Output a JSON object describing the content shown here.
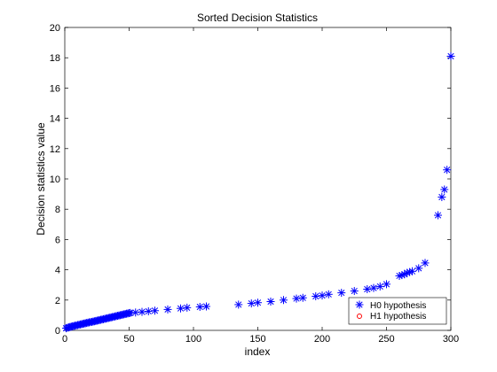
{
  "chart_data": {
    "type": "scatter",
    "title": "Sorted Decision Statistics",
    "xlabel": "index",
    "ylabel": "Decision statistics value",
    "xlim": [
      0,
      300
    ],
    "ylim": [
      0,
      20
    ],
    "xticks": [
      "0",
      "50",
      "100",
      "150",
      "200",
      "250",
      "300"
    ],
    "yticks": [
      "0",
      "2",
      "4",
      "6",
      "8",
      "10",
      "12",
      "14",
      "16",
      "18",
      "20"
    ],
    "grid": false,
    "legend_position": "bottom-right",
    "colors": {
      "h0": "#0000ff",
      "h1": "#ff0000"
    },
    "series": [
      {
        "name": "H0 hypothesis",
        "marker": "asterisk",
        "x": [
          1,
          2,
          3,
          4,
          5,
          6,
          7,
          8,
          9,
          10,
          11,
          12,
          13,
          14,
          15,
          16,
          17,
          18,
          19,
          20,
          21,
          22,
          23,
          24,
          25,
          26,
          27,
          28,
          29,
          30,
          31,
          32,
          33,
          34,
          35,
          36,
          37,
          38,
          39,
          40,
          41,
          42,
          43,
          44,
          45,
          46,
          47,
          48,
          49,
          50,
          51,
          55,
          60,
          65,
          70,
          80,
          90,
          95,
          105,
          110,
          135,
          145,
          150,
          160,
          170,
          180,
          185,
          195,
          200,
          205,
          215,
          225,
          235,
          240,
          245,
          250,
          260,
          262,
          264,
          266,
          268,
          270,
          275,
          280,
          290,
          293,
          295,
          297,
          300
        ],
        "y": [
          0.14,
          0.17,
          0.2,
          0.22,
          0.25,
          0.27,
          0.29,
          0.31,
          0.33,
          0.35,
          0.37,
          0.39,
          0.41,
          0.43,
          0.45,
          0.47,
          0.49,
          0.51,
          0.53,
          0.55,
          0.56,
          0.58,
          0.6,
          0.62,
          0.64,
          0.66,
          0.68,
          0.7,
          0.72,
          0.74,
          0.76,
          0.78,
          0.8,
          0.82,
          0.84,
          0.86,
          0.88,
          0.9,
          0.92,
          0.94,
          0.96,
          0.98,
          1.0,
          1.02,
          1.04,
          1.06,
          1.08,
          1.1,
          1.12,
          1.14,
          1.15,
          1.18,
          1.22,
          1.26,
          1.3,
          1.38,
          1.45,
          1.5,
          1.55,
          1.58,
          1.7,
          1.78,
          1.83,
          1.9,
          2.0,
          2.1,
          2.15,
          2.25,
          2.3,
          2.38,
          2.48,
          2.6,
          2.72,
          2.8,
          2.9,
          3.05,
          3.6,
          3.65,
          3.7,
          3.8,
          3.85,
          3.9,
          4.1,
          4.45,
          7.6,
          8.8,
          9.3,
          10.6,
          18.1
        ]
      },
      {
        "name": "H1 hypothesis",
        "marker": "circle",
        "x": [],
        "y": []
      }
    ]
  }
}
